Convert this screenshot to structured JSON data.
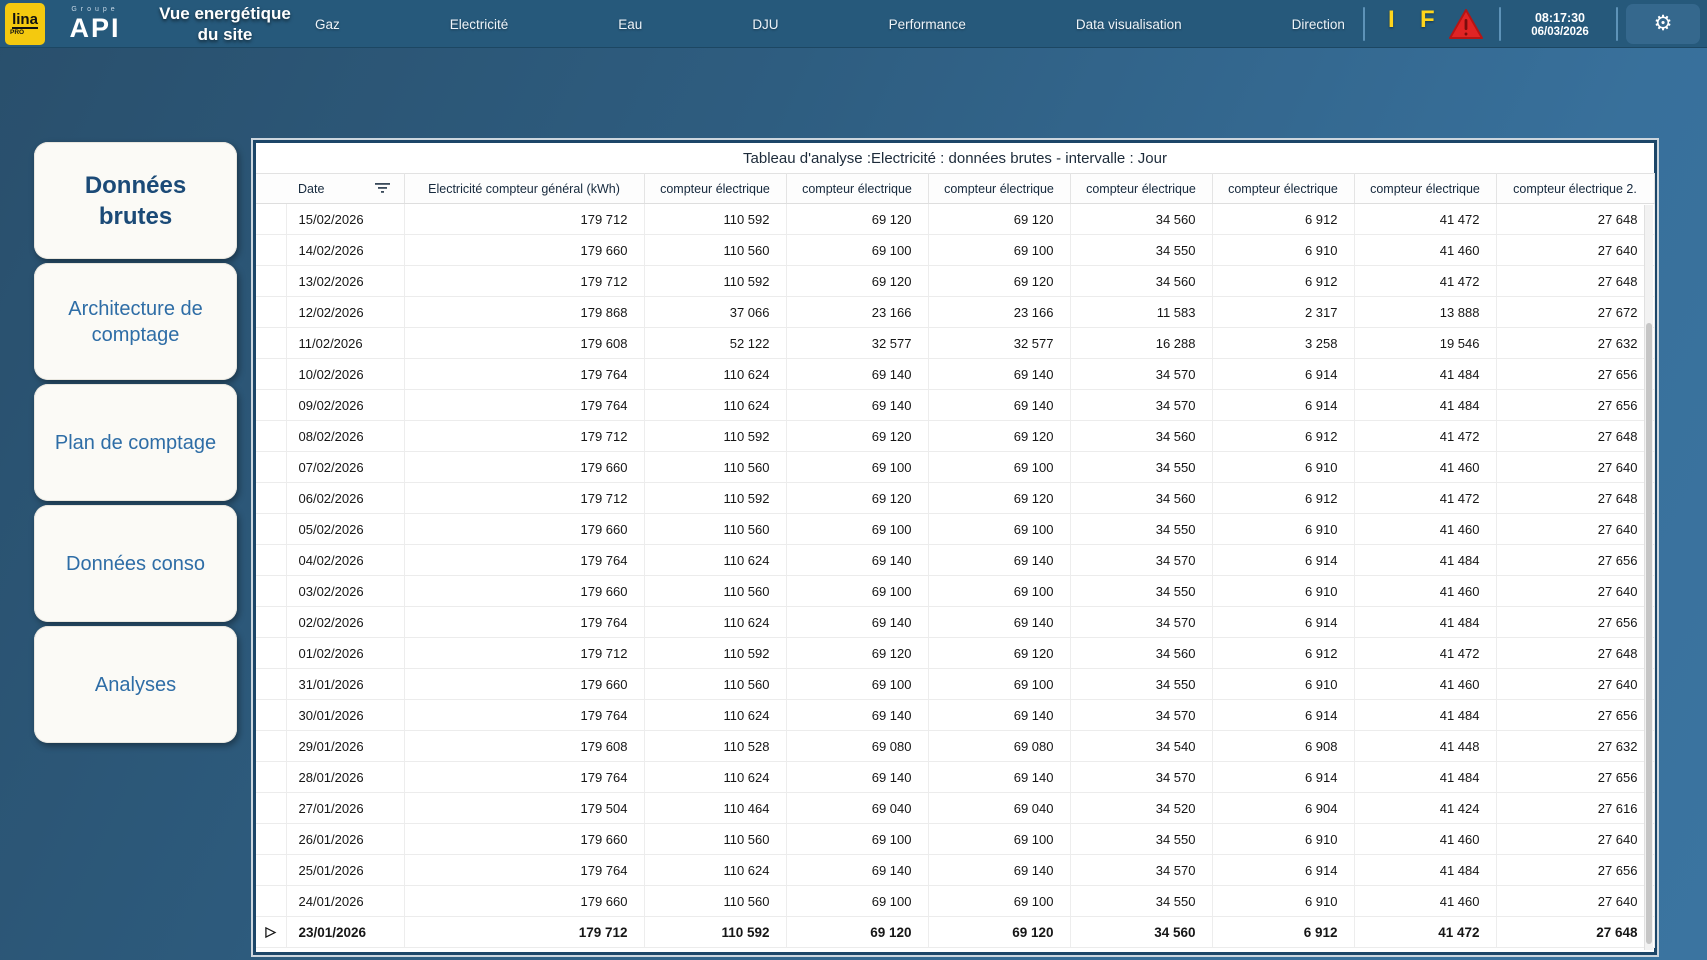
{
  "topbar": {
    "lina_text": "lina",
    "lina_sub": "PRO",
    "api_top": "Groupe",
    "api_main": "API",
    "title_line1": "Vue energétique",
    "title_line2": "du site",
    "nav": [
      "Gaz",
      "Electricité",
      "Eau",
      "DJU",
      "Performance",
      "Data visualisation",
      "Direction"
    ],
    "indicator_i": "I",
    "indicator_f": "F",
    "warning_icon": "alert-triangle",
    "time": "08:17:30",
    "date": "06/03/2026",
    "gear_glyph": "⚙"
  },
  "colors": {
    "topbar_bg": "#26597b",
    "background": "#2e5d80",
    "accent_yellow": "#ffd51c",
    "logo_yellow": "#f4c90f",
    "alert_red": "#e02424",
    "card_border": "#1c4668",
    "active_tab_text": "#1b4a77",
    "inactive_tab_text": "#2e6da6"
  },
  "sidebar": {
    "items": [
      {
        "label": "Données brutes",
        "active": true
      },
      {
        "label": "Architecture de comptage",
        "active": false
      },
      {
        "label": "Plan de comptage",
        "active": false
      },
      {
        "label": "Données conso",
        "active": false
      },
      {
        "label": "Analyses",
        "active": false
      }
    ]
  },
  "table": {
    "title": "Tableau d'analyse :Electricité : données brutes - intervalle : Jour",
    "expand_glyph": "▷",
    "columns": [
      "Date",
      "Electricité compteur général (kWh)",
      "compteur électrique",
      "compteur électrique",
      "compteur électrique",
      "compteur électrique",
      "compteur électrique",
      "compteur électrique",
      "compteur électrique 2."
    ],
    "rows": [
      {
        "date": "15/02/2026",
        "values": [
          "179 712",
          "110 592",
          "69 120",
          "69 120",
          "34 560",
          "6 912",
          "41 472",
          "27 648"
        ],
        "bold": false
      },
      {
        "date": "14/02/2026",
        "values": [
          "179 660",
          "110 560",
          "69 100",
          "69 100",
          "34 550",
          "6 910",
          "41 460",
          "27 640"
        ],
        "bold": false
      },
      {
        "date": "13/02/2026",
        "values": [
          "179 712",
          "110 592",
          "69 120",
          "69 120",
          "34 560",
          "6 912",
          "41 472",
          "27 648"
        ],
        "bold": false
      },
      {
        "date": "12/02/2026",
        "values": [
          "179 868",
          "37 066",
          "23 166",
          "23 166",
          "11 583",
          "2 317",
          "13 888",
          "27 672"
        ],
        "bold": false
      },
      {
        "date": "11/02/2026",
        "values": [
          "179 608",
          "52 122",
          "32 577",
          "32 577",
          "16 288",
          "3 258",
          "19 546",
          "27 632"
        ],
        "bold": false
      },
      {
        "date": "10/02/2026",
        "values": [
          "179 764",
          "110 624",
          "69 140",
          "69 140",
          "34 570",
          "6 914",
          "41 484",
          "27 656"
        ],
        "bold": false
      },
      {
        "date": "09/02/2026",
        "values": [
          "179 764",
          "110 624",
          "69 140",
          "69 140",
          "34 570",
          "6 914",
          "41 484",
          "27 656"
        ],
        "bold": false
      },
      {
        "date": "08/02/2026",
        "values": [
          "179 712",
          "110 592",
          "69 120",
          "69 120",
          "34 560",
          "6 912",
          "41 472",
          "27 648"
        ],
        "bold": false
      },
      {
        "date": "07/02/2026",
        "values": [
          "179 660",
          "110 560",
          "69 100",
          "69 100",
          "34 550",
          "6 910",
          "41 460",
          "27 640"
        ],
        "bold": false
      },
      {
        "date": "06/02/2026",
        "values": [
          "179 712",
          "110 592",
          "69 120",
          "69 120",
          "34 560",
          "6 912",
          "41 472",
          "27 648"
        ],
        "bold": false
      },
      {
        "date": "05/02/2026",
        "values": [
          "179 660",
          "110 560",
          "69 100",
          "69 100",
          "34 550",
          "6 910",
          "41 460",
          "27 640"
        ],
        "bold": false
      },
      {
        "date": "04/02/2026",
        "values": [
          "179 764",
          "110 624",
          "69 140",
          "69 140",
          "34 570",
          "6 914",
          "41 484",
          "27 656"
        ],
        "bold": false
      },
      {
        "date": "03/02/2026",
        "values": [
          "179 660",
          "110 560",
          "69 100",
          "69 100",
          "34 550",
          "6 910",
          "41 460",
          "27 640"
        ],
        "bold": false
      },
      {
        "date": "02/02/2026",
        "values": [
          "179 764",
          "110 624",
          "69 140",
          "69 140",
          "34 570",
          "6 914",
          "41 484",
          "27 656"
        ],
        "bold": false
      },
      {
        "date": "01/02/2026",
        "values": [
          "179 712",
          "110 592",
          "69 120",
          "69 120",
          "34 560",
          "6 912",
          "41 472",
          "27 648"
        ],
        "bold": false
      },
      {
        "date": "31/01/2026",
        "values": [
          "179 660",
          "110 560",
          "69 100",
          "69 100",
          "34 550",
          "6 910",
          "41 460",
          "27 640"
        ],
        "bold": false
      },
      {
        "date": "30/01/2026",
        "values": [
          "179 764",
          "110 624",
          "69 140",
          "69 140",
          "34 570",
          "6 914",
          "41 484",
          "27 656"
        ],
        "bold": false
      },
      {
        "date": "29/01/2026",
        "values": [
          "179 608",
          "110 528",
          "69 080",
          "69 080",
          "34 540",
          "6 908",
          "41 448",
          "27 632"
        ],
        "bold": false
      },
      {
        "date": "28/01/2026",
        "values": [
          "179 764",
          "110 624",
          "69 140",
          "69 140",
          "34 570",
          "6 914",
          "41 484",
          "27 656"
        ],
        "bold": false
      },
      {
        "date": "27/01/2026",
        "values": [
          "179 504",
          "110 464",
          "69 040",
          "69 040",
          "34 520",
          "6 904",
          "41 424",
          "27 616"
        ],
        "bold": false
      },
      {
        "date": "26/01/2026",
        "values": [
          "179 660",
          "110 560",
          "69 100",
          "69 100",
          "34 550",
          "6 910",
          "41 460",
          "27 640"
        ],
        "bold": false
      },
      {
        "date": "25/01/2026",
        "values": [
          "179 764",
          "110 624",
          "69 140",
          "69 140",
          "34 570",
          "6 914",
          "41 484",
          "27 656"
        ],
        "bold": false
      },
      {
        "date": "24/01/2026",
        "values": [
          "179 660",
          "110 560",
          "69 100",
          "69 100",
          "34 550",
          "6 910",
          "41 460",
          "27 640"
        ],
        "bold": false
      },
      {
        "date": "23/01/2026",
        "values": [
          "179 712",
          "110 592",
          "69 120",
          "69 120",
          "34 560",
          "6 912",
          "41 472",
          "27 648"
        ],
        "bold": true
      }
    ]
  }
}
